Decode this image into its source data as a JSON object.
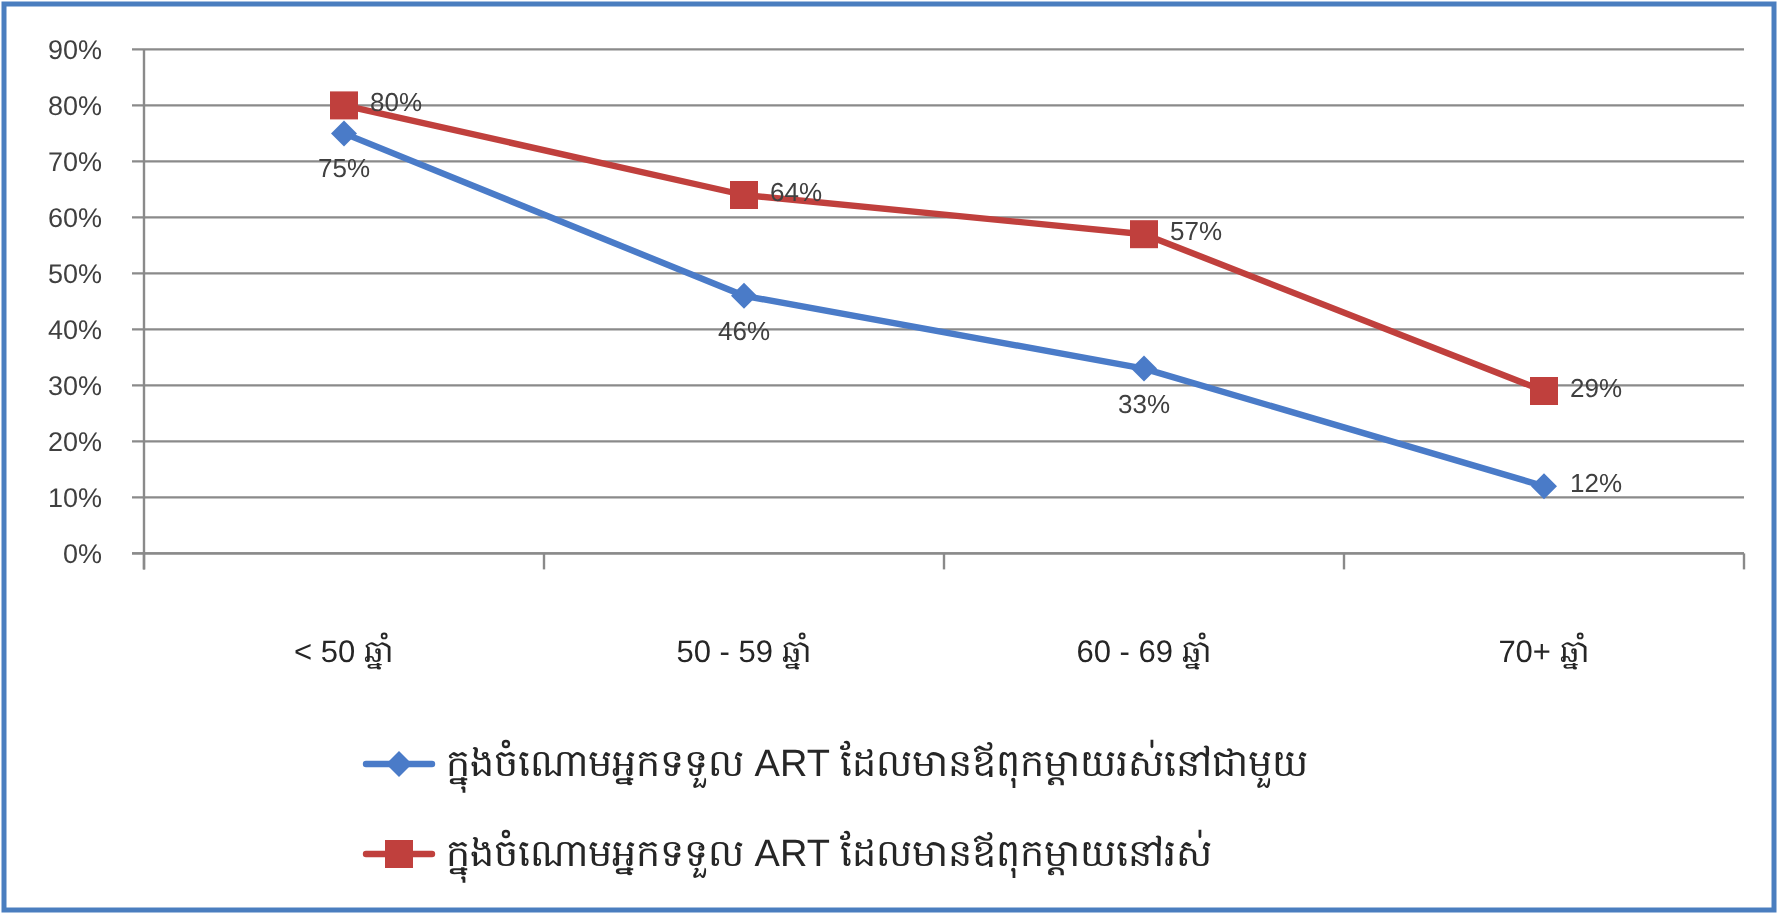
{
  "chart_data": {
    "type": "line",
    "categories": [
      "< 50 ឆ្នាំ",
      "50 - 59 ឆ្នាំ",
      "60 - 69 ឆ្នាំ",
      "70+ ឆ្នាំ"
    ],
    "series": [
      {
        "name": "ក្នុងចំណោមអ្នកទទួល ART ដែលមានឪពុកម្ដាយរស់នៅជាមួយ",
        "color": "#4a7bc8",
        "marker": "diamond",
        "values": [
          75,
          46,
          33,
          12
        ],
        "value_labels": [
          "75%",
          "46%",
          "33%",
          "12%"
        ]
      },
      {
        "name": "ក្នុងចំណោមអ្នកទទួល ART ដែលមានឪពុកម្ដាយនៅរស់",
        "color": "#c0403d",
        "marker": "square",
        "values": [
          80,
          64,
          57,
          29
        ],
        "value_labels": [
          "80%",
          "64%",
          "57%",
          "29%"
        ]
      }
    ],
    "ylim": [
      0,
      90
    ],
    "yticks": [
      {
        "value": 0,
        "label": "0%"
      },
      {
        "value": 10,
        "label": "10%"
      },
      {
        "value": 20,
        "label": "20%"
      },
      {
        "value": 30,
        "label": "30%"
      },
      {
        "value": 40,
        "label": "40%"
      },
      {
        "value": 50,
        "label": "50%"
      },
      {
        "value": 60,
        "label": "60%"
      },
      {
        "value": 70,
        "label": "70%"
      },
      {
        "value": 80,
        "label": "80%"
      },
      {
        "value": 90,
        "label": "90%"
      }
    ],
    "grid": "y",
    "legend": "bottom",
    "line_style": "solid"
  }
}
